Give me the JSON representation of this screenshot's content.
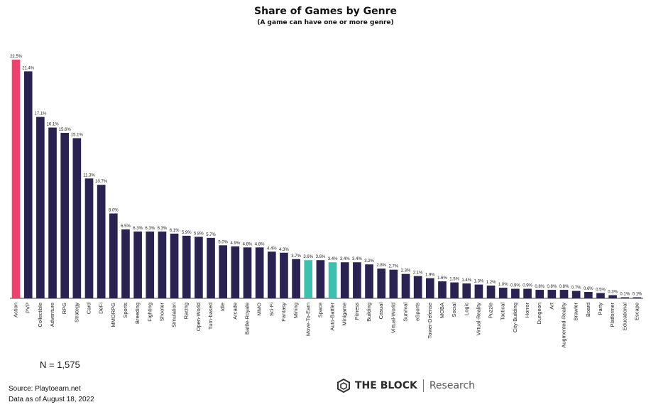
{
  "chart_data": {
    "type": "bar",
    "title": "Share of Games by Genre",
    "subtitle": "(A game can have one or more genre)",
    "xlabel": "",
    "ylabel": "",
    "ylim": [
      0,
      24
    ],
    "grid": false,
    "categories": [
      "Action",
      "PVP",
      "Collectible",
      "Adventure",
      "RPG",
      "Strategy",
      "Card",
      "DeFi",
      "MMORPG",
      "Sports",
      "Breeding",
      "Fighting",
      "Shooter",
      "Simulation",
      "Racing",
      "Open-World",
      "Turn-based",
      "Idle",
      "Arcade",
      "Battle-Royale",
      "MMO",
      "Sci-Fi",
      "Fantasy",
      "Mining",
      "Move-To-Earn",
      "Space",
      "Auto-Battler",
      "Minigame",
      "Fitness",
      "Building",
      "Casual",
      "Virtual-World",
      "Survival",
      "eSports",
      "Tower-Defense",
      "MOBA",
      "Social",
      "Logic",
      "Virtual-Reality",
      "Puzzle",
      "Tactical",
      "City-Building",
      "Horror",
      "Dungeon",
      "Art",
      "Augmented-Reality",
      "Brawler",
      "Board",
      "Party",
      "Platformer",
      "Educational",
      "Escape"
    ],
    "values": [
      22.5,
      21.4,
      17.1,
      16.1,
      15.6,
      15.1,
      11.3,
      10.7,
      8.0,
      6.5,
      6.3,
      6.3,
      6.3,
      6.1,
      5.9,
      5.8,
      5.7,
      5.0,
      4.9,
      4.8,
      4.8,
      4.4,
      4.3,
      3.7,
      3.6,
      3.6,
      3.4,
      3.4,
      3.4,
      3.2,
      2.8,
      2.7,
      2.3,
      2.1,
      1.9,
      1.6,
      1.5,
      1.4,
      1.3,
      1.2,
      1.0,
      0.9,
      0.9,
      0.8,
      0.8,
      0.8,
      0.7,
      0.6,
      0.5,
      0.3,
      0.1,
      0.1
    ],
    "value_labels": [
      "22.5%",
      "21.4%",
      "17.1%",
      "16.1%",
      "15.6%",
      "15.1%",
      "11.3%",
      "10.7%",
      "8.0%",
      "6.5%",
      "6.3%",
      "6.3%",
      "6.3%",
      "6.1%",
      "5.9%",
      "5.8%",
      "5.7%",
      "5.0%",
      "4.9%",
      "4.8%",
      "4.8%",
      "4.4%",
      "4.3%",
      "3.7%",
      "3.6%",
      "3.6%",
      "3.4%",
      "3.4%",
      "3.4%",
      "3.2%",
      "2.8%",
      "2.7%",
      "2.3%",
      "2.1%",
      "1.9%",
      "1.6%",
      "1.5%",
      "1.4%",
      "1.3%",
      "1.2%",
      "1.0%",
      "0.9%",
      "0.9%",
      "0.8%",
      "0.8%",
      "0.8%",
      "0.7%",
      "0.6%",
      "0.5%",
      "0.3%",
      "0.1%",
      "0.1%"
    ],
    "highlight": {
      "Action": "#e8446e",
      "Move-To-Earn": "#3fbfad",
      "Auto-Battler": "#3fbfad"
    },
    "default_color": "#2a2352"
  },
  "footer": {
    "n_label": "N = 1,575",
    "source": "Source: Playtoearn.net",
    "date": "Data as of August 18, 2022"
  },
  "brand": {
    "name": "THE BLOCK",
    "sub": "Research"
  }
}
